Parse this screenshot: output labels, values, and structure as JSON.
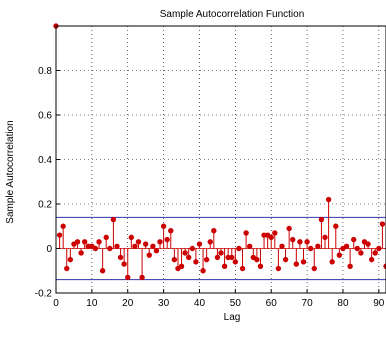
{
  "chart_data": {
    "type": "stem",
    "title": "Sample Autocorrelation Function",
    "xlabel": "Lag",
    "ylabel": "Sample Autocorrelation",
    "xlim": [
      0,
      92
    ],
    "ylim": [
      -0.2,
      1.0
    ],
    "xticks": [
      0,
      10,
      20,
      30,
      40,
      50,
      60,
      70,
      80,
      90
    ],
    "xtick_labels": [
      "0",
      "10",
      "20",
      "30",
      "40",
      "50",
      "60",
      "70",
      "80",
      "90"
    ],
    "yticks": [
      -0.2,
      0,
      0.2,
      0.4,
      0.6,
      0.8
    ],
    "ytick_labels": [
      "-0.2",
      "0",
      "0.2",
      "0.4",
      "0.6",
      "0.8"
    ],
    "grid": "dotted",
    "confidence_bounds": [
      0.14,
      -0.14
    ],
    "stem_color": "#cc0000",
    "bound_color": "#3333aa",
    "x": [
      0,
      1,
      2,
      3,
      4,
      5,
      6,
      7,
      8,
      9,
      10,
      11,
      12,
      13,
      14,
      15,
      16,
      17,
      18,
      19,
      20,
      21,
      22,
      23,
      24,
      25,
      26,
      27,
      28,
      29,
      30,
      31,
      32,
      33,
      34,
      35,
      36,
      37,
      38,
      39,
      40,
      41,
      42,
      43,
      44,
      45,
      46,
      47,
      48,
      49,
      50,
      51,
      52,
      53,
      54,
      55,
      56,
      57,
      58,
      59,
      60,
      61,
      62,
      63,
      64,
      65,
      66,
      67,
      68,
      69,
      70,
      71,
      72,
      73,
      74,
      75,
      76,
      77,
      78,
      79,
      80,
      81,
      82,
      83,
      84,
      85,
      86,
      87,
      88,
      89,
      90,
      91,
      92
    ],
    "y": [
      1.0,
      0.06,
      0.1,
      -0.09,
      -0.05,
      0.02,
      0.03,
      -0.02,
      0.03,
      0.01,
      0.01,
      0.0,
      0.03,
      -0.1,
      0.05,
      0.0,
      0.13,
      0.01,
      -0.04,
      -0.07,
      -0.13,
      0.05,
      0.01,
      0.03,
      -0.13,
      0.02,
      -0.03,
      0.01,
      -0.01,
      0.03,
      0.1,
      0.04,
      0.08,
      -0.05,
      -0.09,
      -0.08,
      -0.02,
      -0.04,
      0.0,
      -0.06,
      0.02,
      -0.1,
      -0.05,
      0.03,
      0.08,
      -0.04,
      -0.02,
      -0.08,
      -0.04,
      -0.04,
      -0.06,
      0.0,
      -0.09,
      0.07,
      0.01,
      -0.04,
      -0.05,
      -0.08,
      0.06,
      0.06,
      0.05,
      0.07,
      -0.09,
      0.01,
      -0.05,
      0.09,
      0.04,
      -0.07,
      0.03,
      -0.06,
      0.03,
      0.0,
      -0.09,
      0.01,
      0.13,
      0.05,
      0.22,
      -0.06,
      0.1,
      -0.03,
      0.0,
      0.01,
      -0.08,
      0.04,
      0.0,
      -0.02,
      0.03,
      0.02,
      -0.05,
      -0.02,
      0.0,
      0.11,
      -0.08
    ]
  }
}
